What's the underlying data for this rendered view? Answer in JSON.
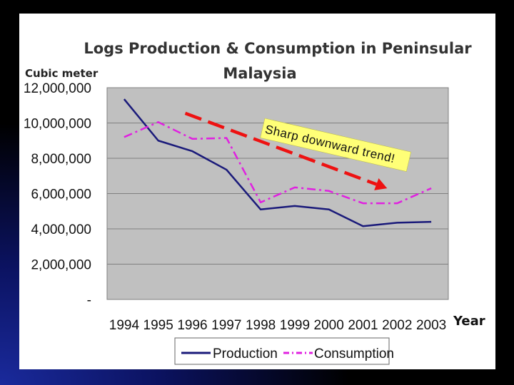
{
  "chart_data": {
    "type": "line",
    "title_lines": [
      "Logs Production & Consumption in Peninsular",
      "Malaysia"
    ],
    "ylabel": "Cubic meter",
    "xlabel": "Year",
    "ylim": [
      0,
      12000000
    ],
    "yticks": [
      0,
      2000000,
      4000000,
      6000000,
      8000000,
      10000000,
      12000000
    ],
    "ytick_labels": [
      "-",
      "2,000,000",
      "4,000,000",
      "6,000,000",
      "8,000,000",
      "10,000,000",
      "12,000,000"
    ],
    "categories": [
      "1994",
      "1995",
      "1996",
      "1997",
      "1998",
      "1999",
      "2000",
      "2001",
      "2002",
      "2003"
    ],
    "series": [
      {
        "name": "Production",
        "color": "#1a1a7a",
        "style": "solid",
        "values": [
          11350000,
          9000000,
          8400000,
          7350000,
          5100000,
          5300000,
          5100000,
          4150000,
          4350000,
          4400000
        ]
      },
      {
        "name": "Consumption",
        "color": "#e020e0",
        "style": "dash-dot",
        "values": [
          9200000,
          10050000,
          9100000,
          9150000,
          5500000,
          6350000,
          6150000,
          5450000,
          5450000,
          6300000
        ]
      }
    ],
    "grid": true,
    "legend_position": "bottom",
    "annotation": {
      "text": "Sharp downward trend!",
      "arrow_color": "#ee1111",
      "arrow_from": {
        "category": "1996",
        "value": 10550000
      },
      "arrow_to": {
        "category": "2002",
        "value": 6300000
      }
    }
  },
  "colors": {
    "plot_bg": "#c0c0c0",
    "slide_bg": "#ffffff"
  }
}
